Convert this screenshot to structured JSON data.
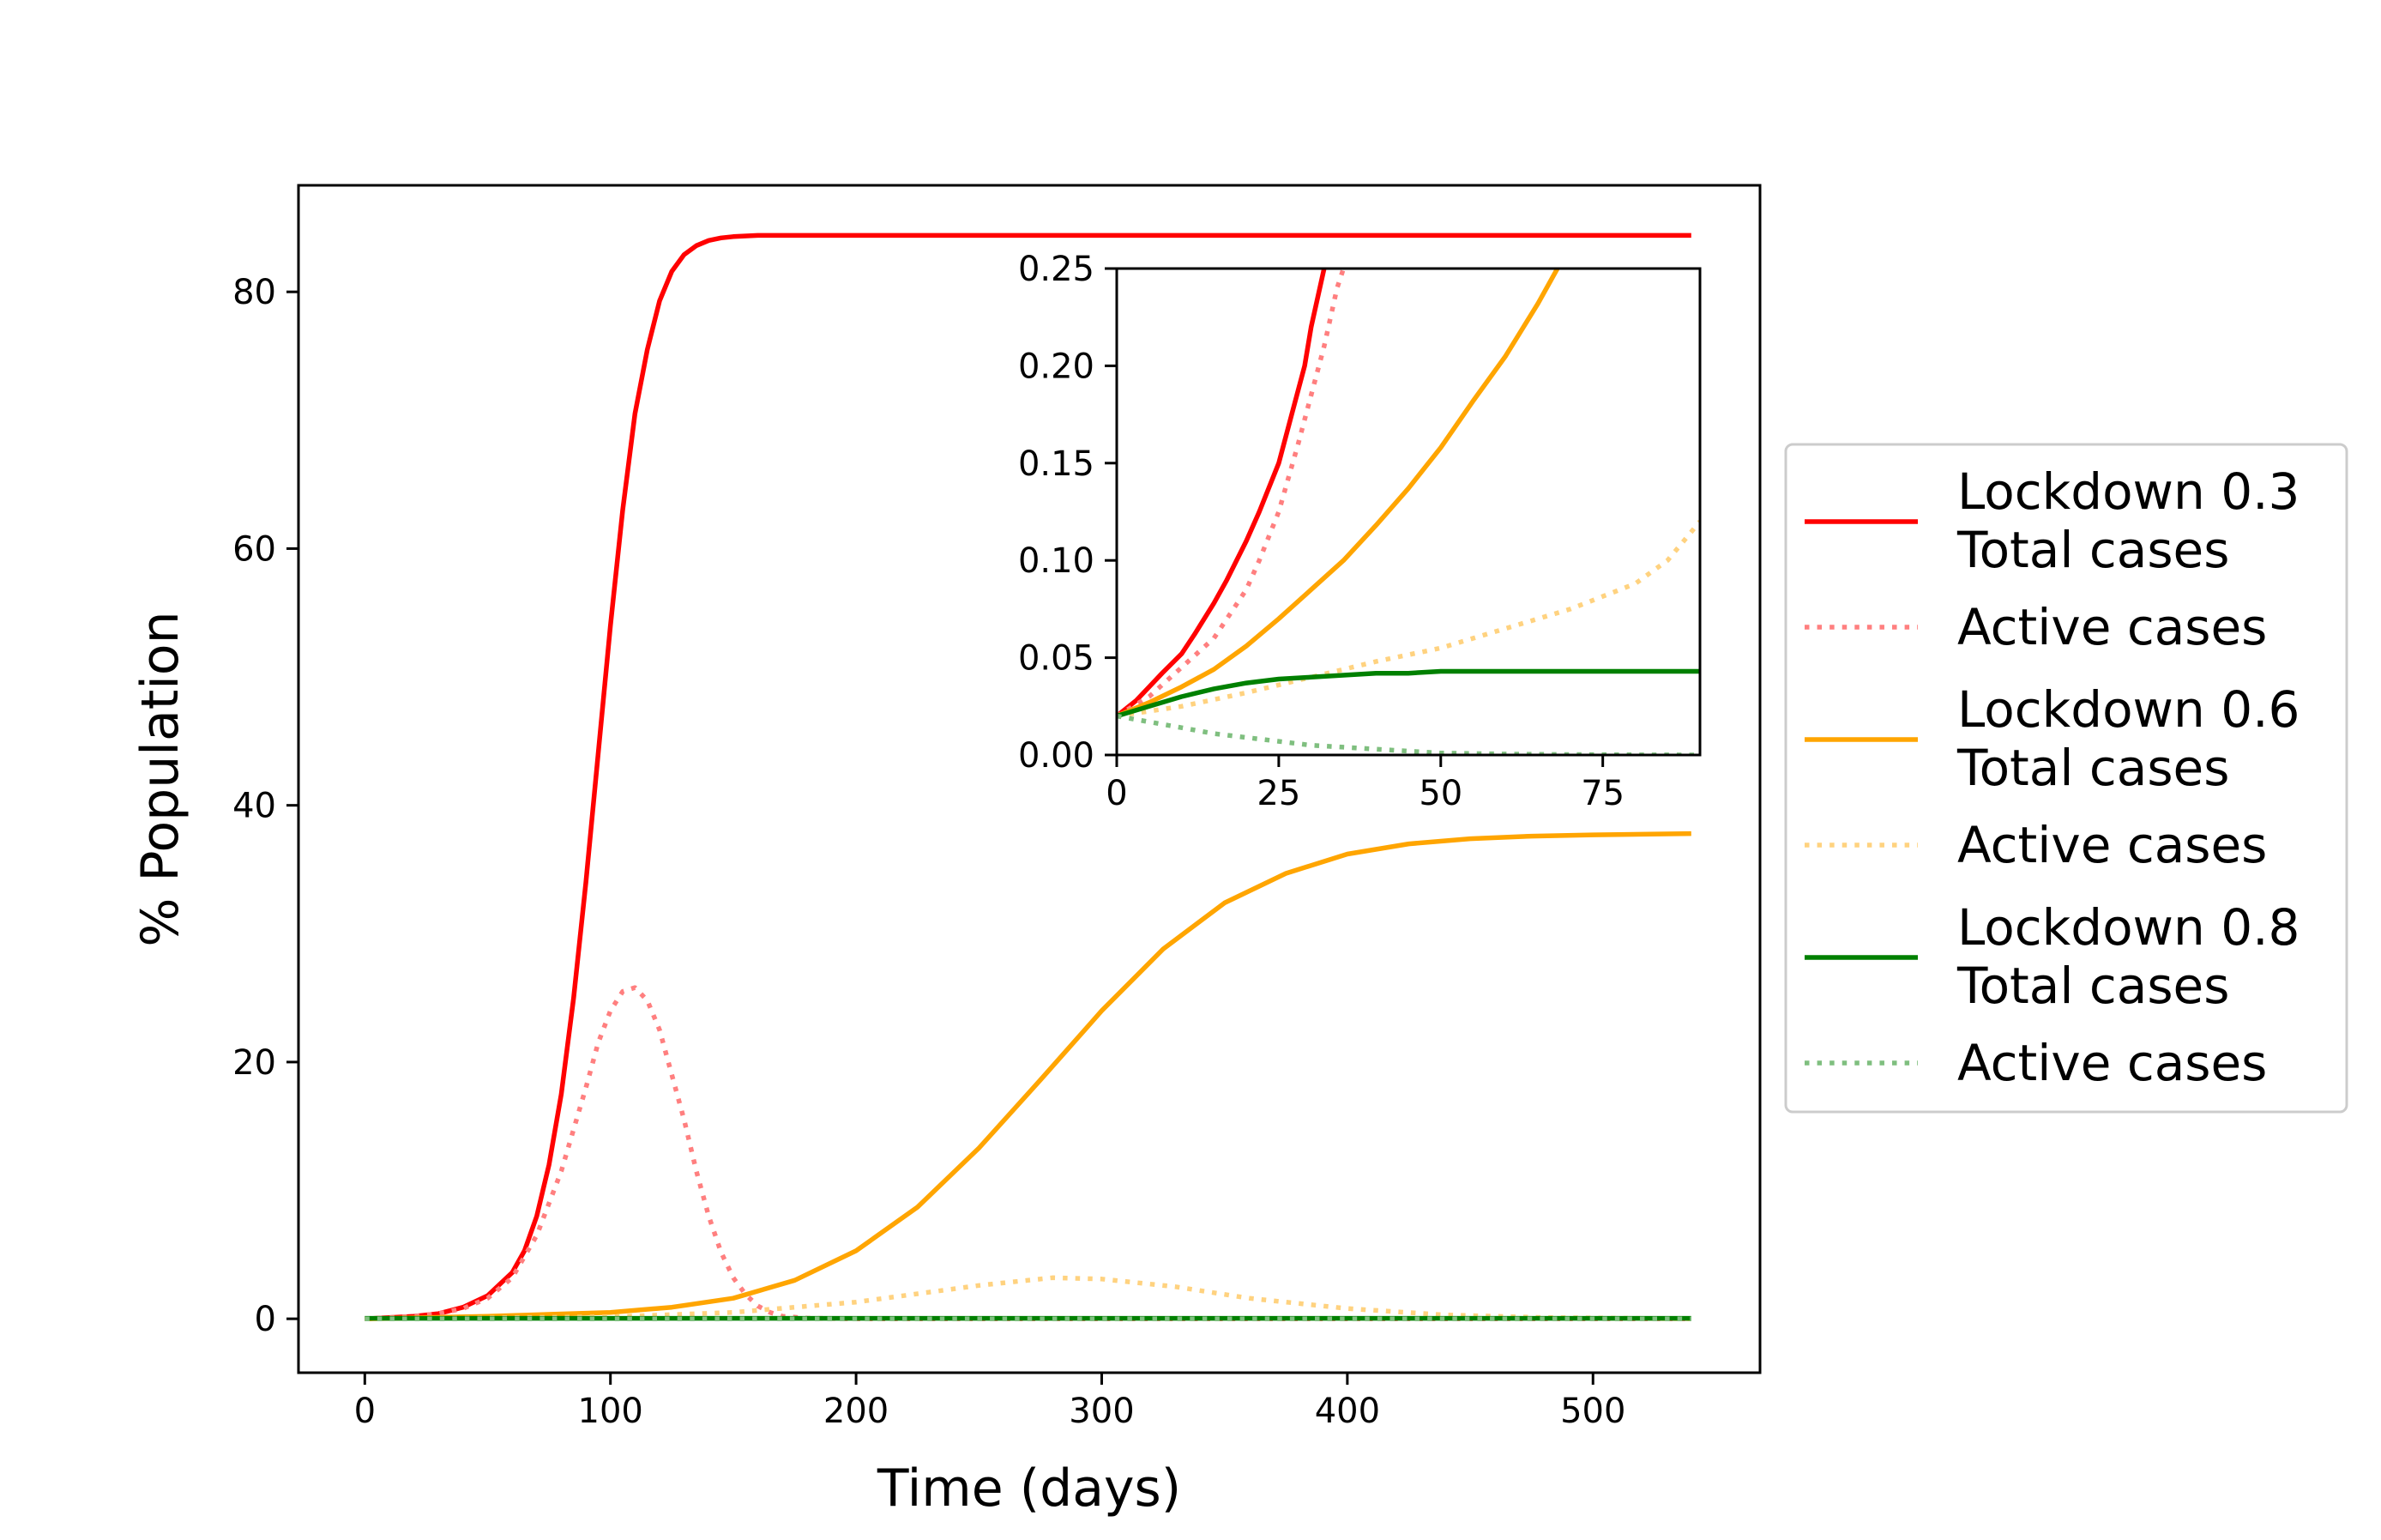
{
  "chart_data": [
    {
      "id": "main",
      "type": "line",
      "xlabel": "Time (days)",
      "ylabel": "% Population",
      "xlim": [
        -27,
        568
      ],
      "ylim": [
        -4.2,
        88.3
      ],
      "xticks": [
        0,
        100,
        200,
        300,
        400,
        500
      ],
      "yticks": [
        0,
        20,
        40,
        60,
        80
      ],
      "grid": false,
      "legend": "outside-right",
      "series": [
        {
          "name": "Lockdown 0.3 Total cases",
          "color": "#ff0000",
          "style": "solid",
          "x": [
            0,
            20,
            30,
            40,
            50,
            60,
            65,
            70,
            75,
            80,
            85,
            90,
            95,
            100,
            105,
            110,
            115,
            120,
            125,
            130,
            135,
            140,
            145,
            150,
            160,
            170,
            180,
            200,
            300,
            400,
            540
          ],
          "y": [
            0,
            0.2,
            0.4,
            0.9,
            1.8,
            3.6,
            5.3,
            8,
            12,
            17.5,
            25,
            34,
            44,
            54,
            63,
            70.5,
            75.5,
            79.3,
            81.6,
            82.9,
            83.6,
            84,
            84.2,
            84.3,
            84.4,
            84.4,
            84.4,
            84.4,
            84.4,
            84.4,
            84.4
          ]
        },
        {
          "name": "Active cases",
          "color": "#ff7f7f",
          "style": "dotted",
          "x": [
            0,
            20,
            30,
            40,
            50,
            60,
            70,
            80,
            90,
            95,
            100,
            105,
            110,
            115,
            120,
            125,
            130,
            135,
            140,
            145,
            150,
            155,
            160,
            165,
            170,
            180,
            200,
            300,
            400,
            540
          ],
          "y": [
            0,
            0.2,
            0.4,
            0.8,
            1.6,
            3.2,
            6.5,
            11.5,
            18,
            21.5,
            24,
            25.5,
            25.8,
            24.8,
            22.5,
            19,
            15.5,
            11.5,
            8,
            5.2,
            3.2,
            1.9,
            1.0,
            0.5,
            0.2,
            0.05,
            0,
            0,
            0,
            0
          ]
        },
        {
          "name": "Lockdown 0.6 Total cases",
          "color": "#ffa500",
          "style": "solid",
          "x": [
            0,
            50,
            100,
            125,
            150,
            175,
            200,
            225,
            250,
            275,
            300,
            325,
            350,
            375,
            400,
            425,
            450,
            475,
            500,
            540
          ],
          "y": [
            0,
            0.2,
            0.5,
            0.9,
            1.6,
            3.0,
            5.3,
            8.7,
            13.3,
            18.6,
            24.0,
            28.8,
            32.4,
            34.7,
            36.2,
            37.0,
            37.4,
            37.6,
            37.7,
            37.8
          ]
        },
        {
          "name": "Active cases",
          "color": "#ffd27f",
          "style": "dotted",
          "x": [
            0,
            100,
            150,
            200,
            250,
            280,
            300,
            330,
            360,
            400,
            440,
            480,
            540
          ],
          "y": [
            0,
            0.15,
            0.5,
            1.3,
            2.6,
            3.2,
            3.1,
            2.5,
            1.6,
            0.8,
            0.3,
            0.1,
            0
          ]
        },
        {
          "name": "Lockdown 0.8 Total cases",
          "color": "#008000",
          "style": "solid",
          "x": [
            0,
            540
          ],
          "y": [
            0.04,
            0.04
          ]
        },
        {
          "name": "Active cases",
          "color": "#7fbf7f",
          "style": "dotted",
          "x": [
            0,
            540
          ],
          "y": [
            0,
            0
          ]
        }
      ]
    },
    {
      "id": "inset",
      "type": "line",
      "xlim": [
        0,
        90
      ],
      "ylim": [
        0,
        0.25
      ],
      "xticks": [
        0,
        25,
        50,
        75
      ],
      "yticks": [
        "0.00",
        "0.05",
        "0.10",
        "0.15",
        "0.20",
        "0.25"
      ],
      "series": [
        {
          "name": "Lockdown 0.3 Total cases",
          "color": "#ff0000",
          "style": "solid",
          "x": [
            0,
            3,
            5,
            7,
            10,
            12,
            15,
            17,
            20,
            22,
            25,
            27,
            29,
            30,
            32
          ],
          "y": [
            0.02,
            0.028,
            0.035,
            0.042,
            0.052,
            0.062,
            0.078,
            0.09,
            0.11,
            0.125,
            0.15,
            0.175,
            0.2,
            0.22,
            0.25
          ]
        },
        {
          "name": "Active cases",
          "color": "#ff7f7f",
          "style": "dotted",
          "x": [
            0,
            5,
            10,
            15,
            20,
            22,
            25,
            28,
            30,
            32,
            34,
            35
          ],
          "y": [
            0.02,
            0.03,
            0.045,
            0.06,
            0.085,
            0.1,
            0.125,
            0.16,
            0.185,
            0.21,
            0.24,
            0.25
          ]
        },
        {
          "name": "Lockdown 0.6 Total cases",
          "color": "#ffa500",
          "style": "solid",
          "x": [
            0,
            5,
            10,
            15,
            20,
            25,
            30,
            35,
            40,
            45,
            50,
            55,
            60,
            65,
            68
          ],
          "y": [
            0.02,
            0.027,
            0.035,
            0.044,
            0.056,
            0.07,
            0.085,
            0.1,
            0.118,
            0.137,
            0.158,
            0.182,
            0.205,
            0.232,
            0.25
          ]
        },
        {
          "name": "Active cases",
          "color": "#ffd27f",
          "style": "dotted",
          "x": [
            0,
            10,
            20,
            30,
            40,
            50,
            60,
            70,
            80,
            85,
            90
          ],
          "y": [
            0.02,
            0.025,
            0.032,
            0.04,
            0.048,
            0.055,
            0.065,
            0.075,
            0.088,
            0.1,
            0.12
          ]
        },
        {
          "name": "Lockdown 0.8 Total cases",
          "color": "#008000",
          "style": "solid",
          "x": [
            0,
            5,
            10,
            15,
            20,
            25,
            30,
            35,
            40,
            45,
            50,
            60,
            70,
            80,
            90
          ],
          "y": [
            0.02,
            0.025,
            0.03,
            0.034,
            0.037,
            0.039,
            0.04,
            0.041,
            0.042,
            0.042,
            0.043,
            0.043,
            0.043,
            0.043,
            0.043
          ]
        },
        {
          "name": "Active cases",
          "color": "#7fbf7f",
          "style": "dotted",
          "x": [
            0,
            5,
            10,
            15,
            20,
            25,
            30,
            35,
            40,
            45,
            50,
            60,
            70,
            80,
            90
          ],
          "y": [
            0.02,
            0.017,
            0.014,
            0.011,
            0.009,
            0.007,
            0.005,
            0.004,
            0.003,
            0.002,
            0.001,
            0.0005,
            0.0002,
            0.0001,
            0
          ]
        }
      ]
    }
  ],
  "legend": {
    "entries": [
      {
        "line1": "Lockdown 0.3",
        "line2": "Total cases",
        "color": "#ff0000",
        "style": "solid"
      },
      {
        "line1": "Active cases",
        "line2": "",
        "color": "#ff7f7f",
        "style": "dotted"
      },
      {
        "line1": "Lockdown 0.6",
        "line2": "Total cases",
        "color": "#ffa500",
        "style": "solid"
      },
      {
        "line1": "Active cases",
        "line2": "",
        "color": "#ffd27f",
        "style": "dotted"
      },
      {
        "line1": "Lockdown 0.8",
        "line2": "Total cases",
        "color": "#008000",
        "style": "solid"
      },
      {
        "line1": "Active cases",
        "line2": "",
        "color": "#7fbf7f",
        "style": "dotted"
      }
    ]
  }
}
